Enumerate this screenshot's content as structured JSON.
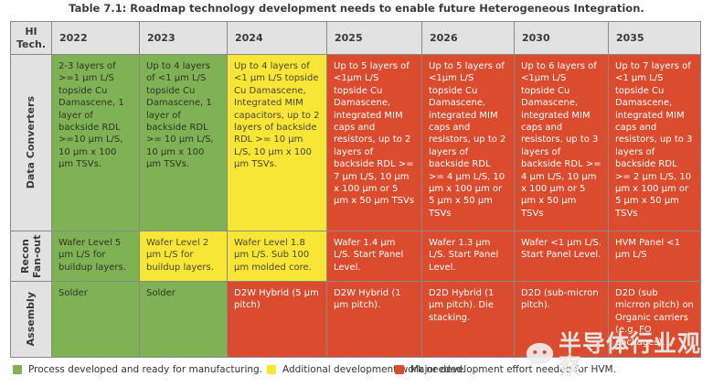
{
  "title": "Table 7.1: Roadmap technology development needs to enable future Heterogeneous Integration.",
  "table": {
    "corner_header": "HI Tech.",
    "years": [
      "2022",
      "2023",
      "2024",
      "2025",
      "2026",
      "2030",
      "2035"
    ],
    "rows": [
      {
        "label": "Data Converters",
        "cells": [
          {
            "status": "green",
            "text": "2-3 layers of >=1 μm L/S topside Cu Damascene, 1 layer of backside RDL >=10 μm L/S, 10 μm x 100 μm TSVs."
          },
          {
            "status": "green",
            "text": "Up to 4 layers of <1 μm L/S topside Cu Damascene, 1 layer of backside RDL >= 10 μm L/S, 10 μm x 100 μm TSVs."
          },
          {
            "status": "yellow",
            "text": "Up to 4 layers of <1 μm L/S topside Cu Damascene, Integrated MIM capacitors, up to 2 layers of backside RDL >= 10 μm L/S, 10 μm x 100 μm TSVs."
          },
          {
            "status": "red",
            "text": "Up to 5 layers of <1μm L/S topside Cu Damascene, integrated MIM caps and resistors, up to 2 layers of backside RDL >= 7 μm L/S, 10 μm x 100 μm or 5 μm x 50 μm TSVs"
          },
          {
            "status": "red",
            "text": "Up to 5 layers of <1μm L/S topside Cu Damascene, integrated MIM caps and resistors, up to 2 layers of backside RDL >= 4 μm L/S, 10 μm x 100 μm or 5 μm x 50 μm TSVs"
          },
          {
            "status": "red",
            "text": "Up to 6 layers of <1μm L/S topside Cu Damascene, integrated MIM caps and resistors, up to 3 layers of backside RDL >= 4 μm L/S, 10 μm x 100 μm or 5 μm x 50 μm TSVs"
          },
          {
            "status": "red",
            "text": "Up to 7 layers of <1 μm L/S topside Cu Damascene, integrated MIM caps and resistors, up to 3 layers of backside RDL >= 2 μm L/S, 10 μm x 100 μm or 5 μm x 50 μm TSVs"
          }
        ]
      },
      {
        "label": "Recon Fan-out",
        "cells": [
          {
            "status": "green",
            "text": "Wafer Level 5 μm L/S for buildup layers."
          },
          {
            "status": "yellow",
            "text": "Wafer Level 2 μm L/S for buildup layers."
          },
          {
            "status": "yellow",
            "text": "Wafer Level 1.8 μm L/S. Sub 100 μm molded core."
          },
          {
            "status": "red",
            "text": "Wafer 1.4 μm L/S. Start Panel Level."
          },
          {
            "status": "red",
            "text": "Wafer 1.3 μm L/S. Start Panel Level."
          },
          {
            "status": "red",
            "text": "Wafer <1 μm L/S. Start Panel Level."
          },
          {
            "status": "red",
            "text": "HVM Panel <1 μm L/S"
          }
        ]
      },
      {
        "label": "Assembly",
        "cells": [
          {
            "status": "green",
            "text": "Solder"
          },
          {
            "status": "green",
            "text": "Solder"
          },
          {
            "status": "red",
            "text": "D2W Hybrid (5 μm pitch)"
          },
          {
            "status": "red",
            "text": "D2W Hybrid (1 μm pitch)."
          },
          {
            "status": "red",
            "text": "D2D Hybrid (1 μm pitch). Die stacking."
          },
          {
            "status": "red",
            "text": "D2D (sub-micron pitch)."
          },
          {
            "status": "red",
            "text": "D2D (sub micrron pitch) on Organic carriers (e.g. FO packages)."
          }
        ]
      }
    ]
  },
  "legend": [
    {
      "key": "green",
      "color": "#7eb254",
      "label": "Process developed and ready for manufacturing."
    },
    {
      "key": "yellow",
      "color": "#f8e637",
      "label": "Additional development work needed."
    },
    {
      "key": "red",
      "color": "#db4b2e",
      "label": "Major development effort needed for HVM."
    }
  ],
  "watermark": {
    "icon": "wechat-icon",
    "text": "半导体行业观察"
  },
  "colors": {
    "status_green": "#7eb254",
    "status_yellow": "#f8e637",
    "status_red": "#db4b2e",
    "header_gray": "#e2e2e2",
    "grid_line": "#8a8a8a"
  }
}
